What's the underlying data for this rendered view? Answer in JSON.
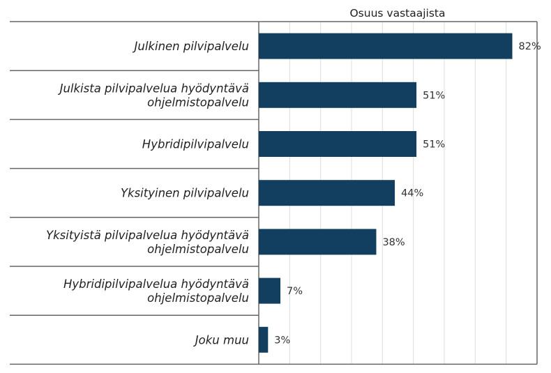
{
  "chart_data": {
    "type": "bar",
    "orientation": "horizontal",
    "title": "Osuus vastaajista",
    "categories": [
      [
        "Julkinen pilvipalvelu"
      ],
      [
        "Julkista pilvipalvelua hyödyntävä",
        "ohjelmistopalvelu"
      ],
      [
        "Hybridipilvipalvelu"
      ],
      [
        "Yksityinen pilvipalvelu"
      ],
      [
        "Yksityistä pilvipalvelua hyödyntävä",
        "ohjelmistopalvelu"
      ],
      [
        "Hybridipilvipalvelua hyödyntävä",
        "ohjelmistopalvelu"
      ],
      [
        "Joku muu"
      ]
    ],
    "values": [
      82,
      51,
      51,
      44,
      38,
      7,
      3
    ],
    "value_labels": [
      "82%",
      "51%",
      "51%",
      "44%",
      "38%",
      "7%",
      "3%"
    ],
    "xlim": [
      0,
      90
    ],
    "x_gridlines": [
      10,
      20,
      30,
      40,
      50,
      60,
      70,
      80,
      90
    ],
    "grid": true,
    "bar_color": "#123f5f",
    "gridline_color": "#dcdcdc",
    "frame_color": "#666666"
  }
}
